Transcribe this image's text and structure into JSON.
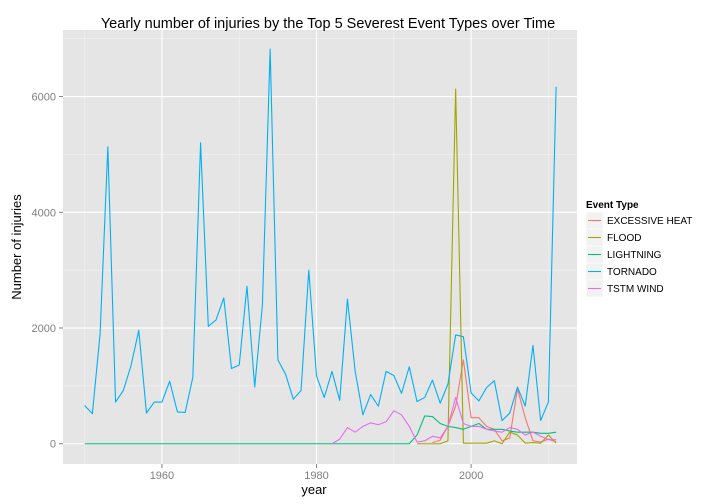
{
  "chart_data": {
    "type": "line",
    "title": "Yearly number of injuries by the Top 5 Severest Event Types over Time",
    "xlabel": "year",
    "ylabel": "Number of injuries",
    "xlim": [
      1947.2,
      2013.7
    ],
    "ylim": [
      -350,
      7150
    ],
    "x_ticks": [
      1960,
      1980,
      2000
    ],
    "y_ticks": [
      0,
      2000,
      4000,
      6000
    ],
    "grid": true,
    "legend_position": "right",
    "legend_title": "Event Type",
    "series": [
      {
        "name": "EXCESSIVE HEAT",
        "color": "#F8766D",
        "x": [
          1995,
          1996,
          1997,
          1998,
          1999,
          2000,
          2001,
          2002,
          2003,
          2004,
          2005,
          2006,
          2007,
          2008,
          2009,
          2010,
          2011
        ],
        "y": [
          20,
          60,
          300,
          650,
          1450,
          450,
          450,
          300,
          250,
          50,
          100,
          950,
          450,
          50,
          30,
          80,
          30
        ]
      },
      {
        "name": "FLOOD",
        "color": "#A3A500",
        "x": [
          1993,
          1994,
          1995,
          1996,
          1997,
          1998,
          1999,
          2000,
          2001,
          2002,
          2003,
          2004,
          2005,
          2006,
          2007,
          2008,
          2009,
          2010,
          2011
        ],
        "y": [
          0,
          0,
          0,
          0,
          50,
          6130,
          10,
          10,
          10,
          10,
          50,
          0,
          200,
          150,
          10,
          20,
          10,
          150,
          10
        ]
      },
      {
        "name": "LIGHTNING",
        "color": "#00BF7D",
        "x": [
          1950,
          1955,
          1960,
          1965,
          1970,
          1975,
          1980,
          1985,
          1990,
          1991,
          1992,
          1993,
          1994,
          1995,
          1996,
          1997,
          1998,
          1999,
          2000,
          2001,
          2002,
          2003,
          2004,
          2005,
          2006,
          2007,
          2008,
          2009,
          2010,
          2011
        ],
        "y": [
          0,
          0,
          0,
          0,
          0,
          0,
          0,
          0,
          0,
          0,
          0,
          150,
          480,
          470,
          350,
          300,
          280,
          250,
          300,
          350,
          250,
          250,
          250,
          220,
          200,
          200,
          200,
          180,
          180,
          200
        ]
      },
      {
        "name": "TORNADO",
        "color": "#00B0F6",
        "x": [
          1950,
          1951,
          1952,
          1953,
          1954,
          1955,
          1956,
          1957,
          1958,
          1959,
          1960,
          1961,
          1962,
          1963,
          1964,
          1965,
          1966,
          1967,
          1968,
          1969,
          1970,
          1971,
          1972,
          1973,
          1974,
          1975,
          1976,
          1977,
          1978,
          1979,
          1980,
          1981,
          1982,
          1983,
          1984,
          1985,
          1986,
          1987,
          1988,
          1989,
          1990,
          1991,
          1992,
          1993,
          1994,
          1995,
          1996,
          1997,
          1998,
          1999,
          2000,
          2001,
          2002,
          2003,
          2004,
          2005,
          2006,
          2007,
          2008,
          2009,
          2010,
          2011
        ],
        "y": [
          660,
          520,
          1900,
          5130,
          720,
          920,
          1350,
          1960,
          530,
          720,
          720,
          1080,
          550,
          540,
          1150,
          5200,
          2030,
          2140,
          2520,
          1300,
          1360,
          2720,
          980,
          2400,
          6820,
          1450,
          1200,
          770,
          920,
          3000,
          1170,
          800,
          1250,
          750,
          2500,
          1250,
          500,
          850,
          650,
          1250,
          1180,
          870,
          1330,
          730,
          800,
          1100,
          700,
          1030,
          1880,
          1850,
          880,
          740,
          970,
          1090,
          400,
          530,
          980,
          650,
          1700,
          400,
          720,
          6170
        ]
      },
      {
        "name": "TSTM WIND",
        "color": "#E76BF3",
        "x": [
          1982,
          1983,
          1984,
          1985,
          1986,
          1987,
          1988,
          1989,
          1990,
          1991,
          1992,
          1993,
          1994,
          1995,
          1996,
          1997,
          1998,
          1999,
          2000,
          2001,
          2002,
          2003,
          2004,
          2005,
          2006,
          2007,
          2008,
          2009,
          2010,
          2011
        ],
        "y": [
          0,
          80,
          280,
          200,
          300,
          360,
          330,
          380,
          570,
          500,
          300,
          30,
          50,
          130,
          100,
          300,
          800,
          350,
          300,
          300,
          250,
          220,
          200,
          280,
          250,
          150,
          200,
          130,
          70,
          70
        ]
      }
    ]
  }
}
